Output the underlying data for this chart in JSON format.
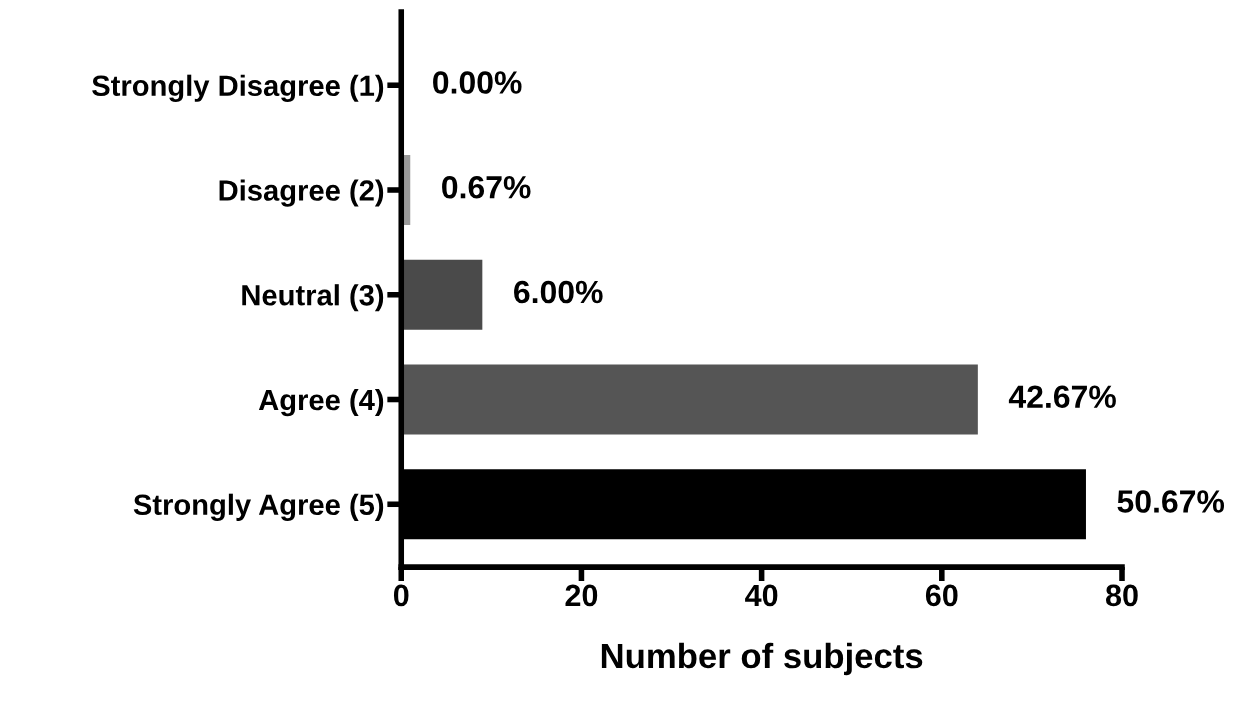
{
  "chart_data": {
    "type": "bar",
    "orientation": "horizontal",
    "xlabel": "Number of subjects",
    "categories": [
      "Strongly Disagree (1)",
      "Disagree (2)",
      "Neutral (3)",
      "Agree (4)",
      "Strongly Agree (5)"
    ],
    "values": [
      0,
      1,
      9,
      64,
      76
    ],
    "colors": [
      "#000000",
      "#9a9a9a",
      "#4a4a4a",
      "#555555",
      "#000000"
    ],
    "annotations": [
      {
        "text": "0.00%",
        "x": 0,
        "y": "Strongly Disagree (1)"
      },
      {
        "text": "0.67%",
        "x": 1,
        "y": "Disagree (2)"
      },
      {
        "text": "6.00%",
        "x": 9,
        "y": "Neutral (3)"
      },
      {
        "text": "42.67%",
        "x": 64,
        "y": "Agree (4)"
      },
      {
        "text": "50.67%",
        "x": 76,
        "y": "Strongly Agree (5)"
      }
    ],
    "xlim": [
      0,
      80
    ],
    "xticks": [
      0,
      20,
      40,
      60,
      80
    ],
    "grid": false
  }
}
